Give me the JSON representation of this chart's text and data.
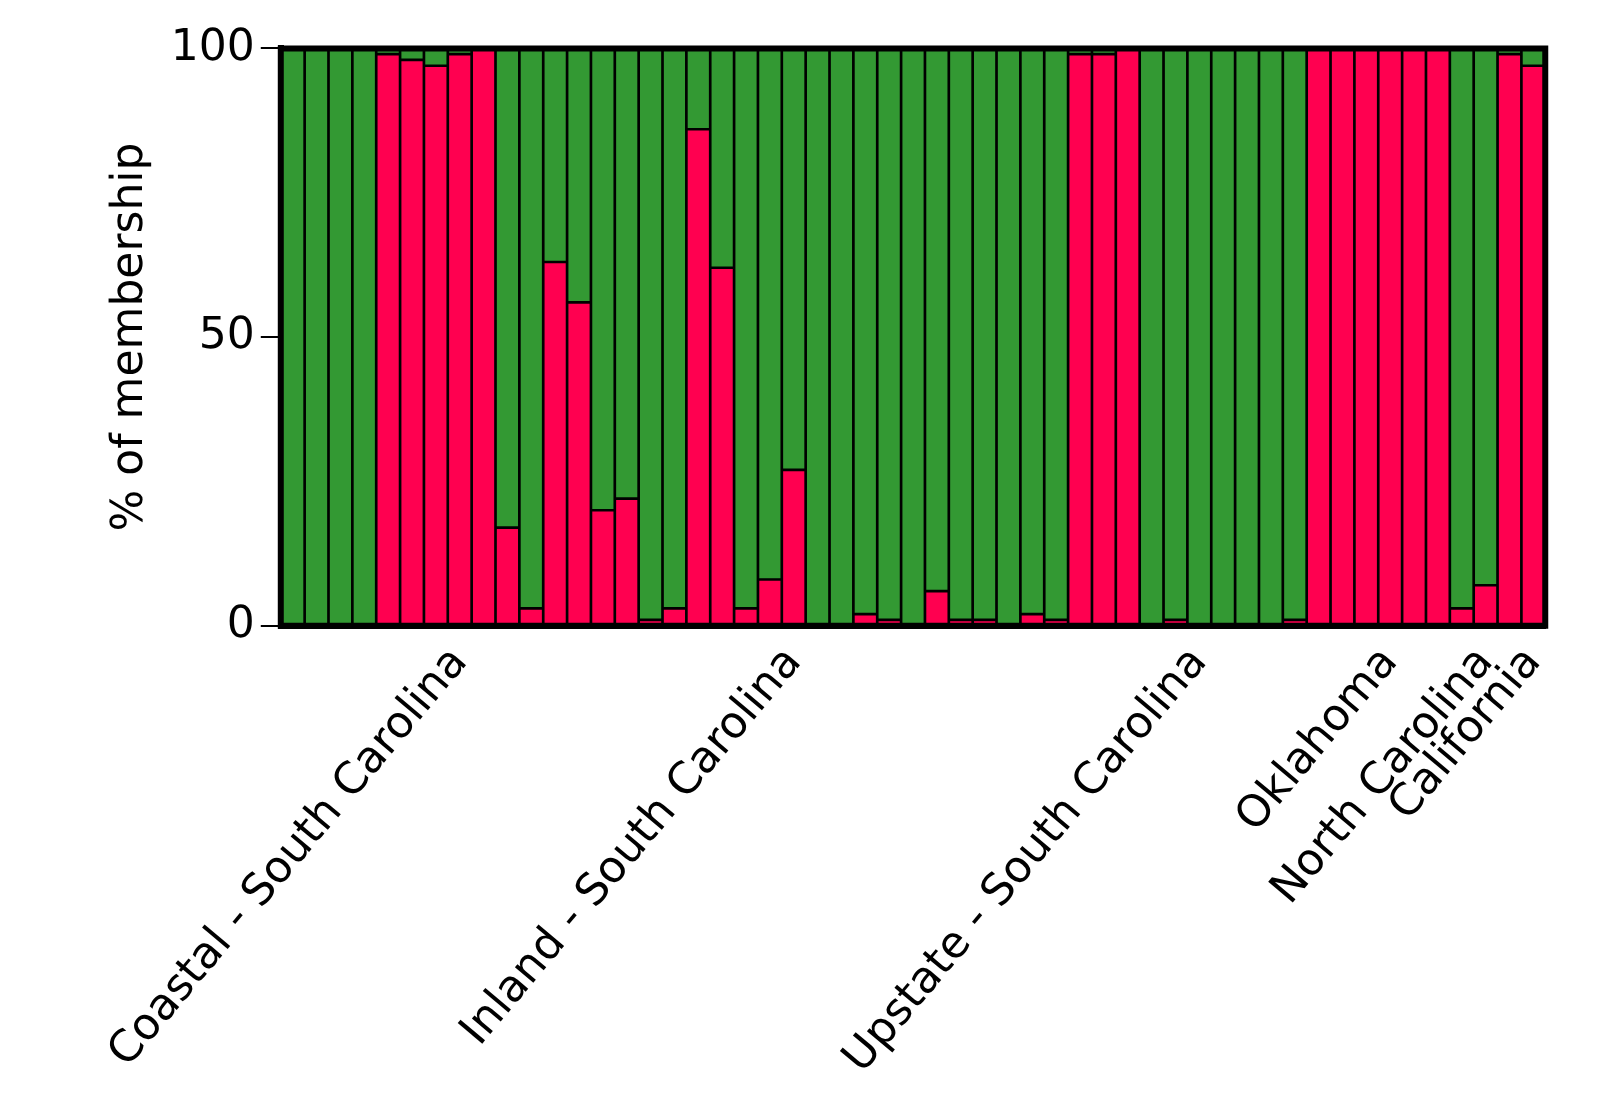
{
  "chart_data": {
    "type": "bar",
    "stacked": true,
    "ylabel": "% of membership",
    "categories": [
      null,
      null,
      null,
      null,
      null,
      null,
      null,
      "Coastal - South Carolina",
      null,
      null,
      null,
      null,
      null,
      null,
      null,
      null,
      null,
      null,
      null,
      null,
      null,
      "Inland - South Carolina",
      null,
      null,
      null,
      null,
      null,
      null,
      null,
      null,
      null,
      null,
      null,
      null,
      null,
      null,
      null,
      null,
      "Upstate - South Carolina",
      null,
      null,
      null,
      null,
      null,
      null,
      null,
      "Oklahoma",
      null,
      null,
      null,
      "North Carolina",
      null,
      "California"
    ],
    "series": [
      {
        "color": "#ff0050",
        "values": [
          0,
          0,
          0,
          0,
          99,
          98,
          97,
          99,
          100,
          17,
          3,
          63,
          56,
          20,
          22,
          1,
          3,
          86,
          62,
          3,
          8,
          27,
          0,
          0,
          2,
          1,
          0,
          6,
          1,
          1,
          0,
          2,
          1,
          99,
          99,
          100,
          0,
          1,
          0,
          0,
          0,
          0,
          1,
          100,
          100,
          100,
          100,
          100,
          100,
          3,
          7,
          99,
          97
        ]
      },
      {
        "color": "#339933",
        "values": [
          100,
          100,
          100,
          100,
          1,
          2,
          3,
          1,
          0,
          83,
          97,
          37,
          44,
          80,
          78,
          99,
          97,
          14,
          38,
          97,
          92,
          73,
          100,
          100,
          98,
          99,
          100,
          94,
          99,
          99,
          100,
          98,
          99,
          1,
          1,
          0,
          100,
          99,
          100,
          100,
          100,
          100,
          99,
          0,
          0,
          0,
          0,
          0,
          0,
          97,
          93,
          1,
          3
        ]
      }
    ],
    "ylim": [
      0,
      100
    ],
    "yticks": [
      0,
      50,
      100
    ],
    "legend": false
  }
}
